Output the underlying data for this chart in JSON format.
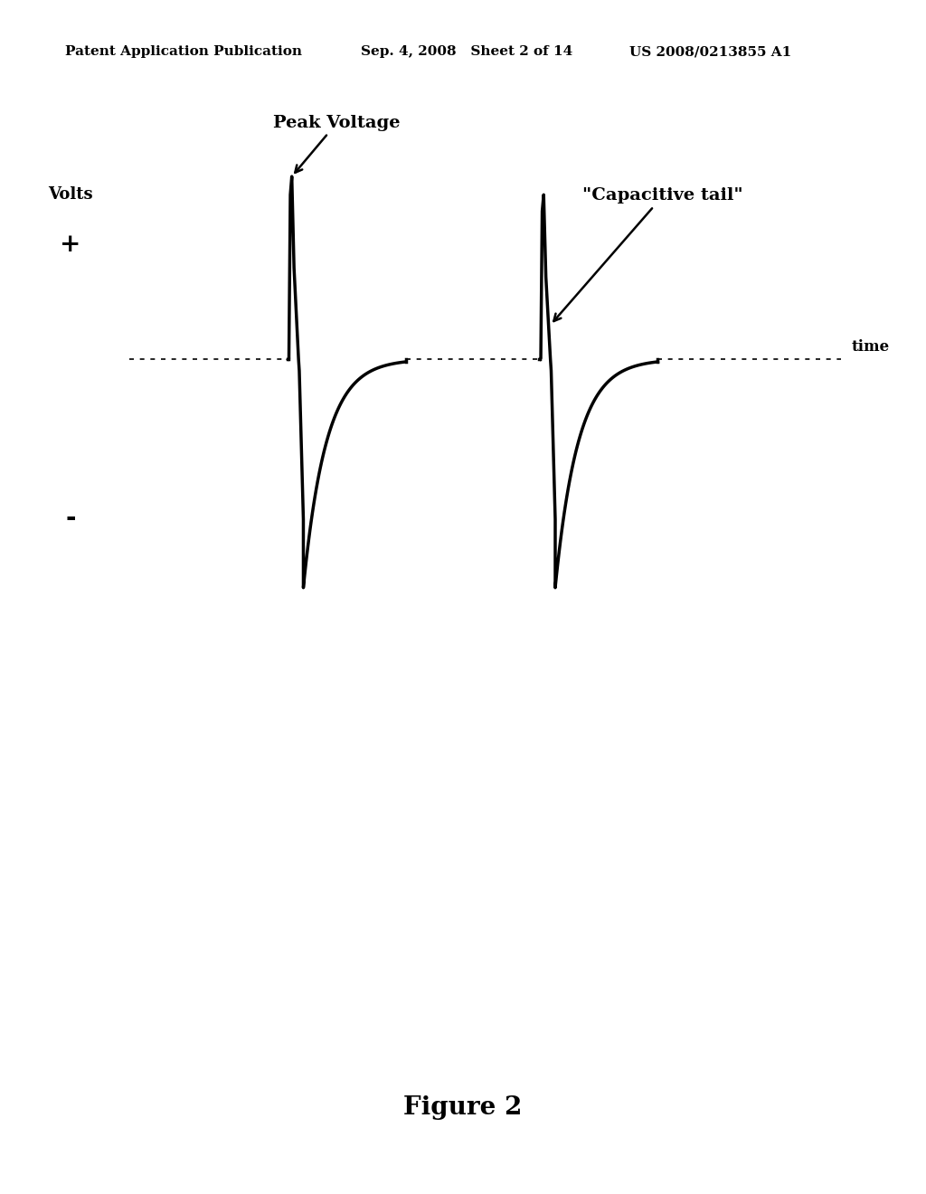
{
  "background_color": "#ffffff",
  "header_left": "Patent Application Publication",
  "header_center": "Sep. 4, 2008   Sheet 2 of 14",
  "header_right": "US 2008/0213855 A1",
  "header_fontsize": 11,
  "figure_caption": "Figure 2",
  "caption_fontsize": 20,
  "volts_label": "Volts",
  "plus_label": "+",
  "minus_label": "-",
  "time_label": "time",
  "peak_voltage_label": "Peak Voltage",
  "capacitive_tail_label": "\"Capacitive tail\"",
  "line_color": "#000000",
  "line_width": 2.5,
  "xlim": [
    0,
    1.0
  ],
  "ylim": [
    -1.25,
    1.05
  ]
}
